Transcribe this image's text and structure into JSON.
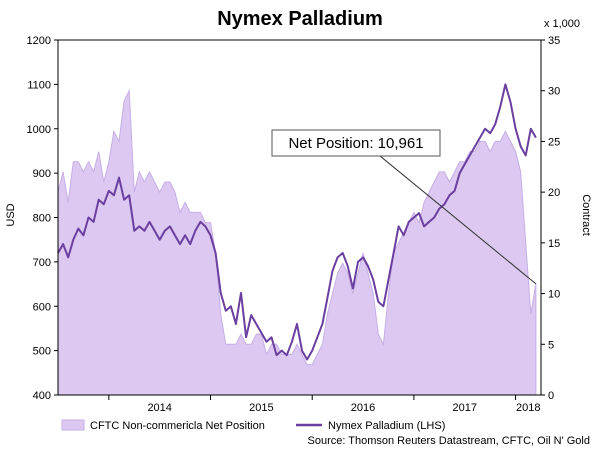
{
  "chart_data": {
    "type": "area+line",
    "title": "Nymex Palladium",
    "ylabel_left": "USD",
    "ylabel_right": "Contract",
    "right_multiplier": "x 1,000",
    "ylim_left": [
      400,
      1200
    ],
    "ylim_right": [
      0,
      35
    ],
    "left_ticks": [
      400,
      500,
      600,
      700,
      800,
      900,
      1000,
      1100,
      1200
    ],
    "right_ticks": [
      0,
      5,
      10,
      15,
      20,
      25,
      30,
      35
    ],
    "x_range": [
      2013.5,
      2018.25
    ],
    "year_ticks": [
      "2014",
      "2015",
      "2016",
      "2017",
      "2018"
    ],
    "grid": false,
    "legend_position": "bottom",
    "colors": {
      "area_fill": "#dcc8f0",
      "area_edge": "#c6aee6",
      "line": "#6a3fa0",
      "annotation": "#333333"
    },
    "series": [
      {
        "name": "CFTC Non-commericla Net Position",
        "type": "area",
        "axis": "right",
        "x": [
          2013.5,
          2013.55,
          2013.6,
          2013.65,
          2013.7,
          2013.75,
          2013.8,
          2013.85,
          2013.9,
          2013.95,
          2014.0,
          2014.05,
          2014.1,
          2014.15,
          2014.2,
          2014.25,
          2014.3,
          2014.35,
          2014.4,
          2014.45,
          2014.5,
          2014.55,
          2014.6,
          2014.65,
          2014.7,
          2014.75,
          2014.8,
          2014.85,
          2014.9,
          2014.95,
          2015.0,
          2015.05,
          2015.1,
          2015.15,
          2015.2,
          2015.25,
          2015.3,
          2015.35,
          2015.4,
          2015.45,
          2015.5,
          2015.55,
          2015.6,
          2015.65,
          2015.7,
          2015.75,
          2015.8,
          2015.85,
          2015.9,
          2015.95,
          2016.0,
          2016.05,
          2016.1,
          2016.15,
          2016.2,
          2016.25,
          2016.3,
          2016.35,
          2016.4,
          2016.45,
          2016.5,
          2016.55,
          2016.6,
          2016.65,
          2016.7,
          2016.75,
          2016.8,
          2016.85,
          2016.9,
          2016.95,
          2017.0,
          2017.05,
          2017.1,
          2017.15,
          2017.2,
          2017.25,
          2017.3,
          2017.35,
          2017.4,
          2017.45,
          2017.5,
          2017.55,
          2017.6,
          2017.65,
          2017.7,
          2017.75,
          2017.8,
          2017.85,
          2017.9,
          2017.95,
          2018.0,
          2018.05,
          2018.1,
          2018.15,
          2018.2
        ],
        "values": [
          20,
          22,
          19,
          23,
          23,
          22,
          23,
          22,
          24,
          21,
          23,
          26,
          25,
          29,
          30,
          20,
          22,
          21,
          22,
          21,
          20,
          21,
          21,
          20,
          18,
          19,
          18,
          18,
          18,
          17,
          17,
          14,
          8,
          5,
          5,
          5,
          6,
          5,
          5,
          6,
          6,
          4,
          5,
          5,
          4,
          4,
          4,
          5,
          4,
          3,
          3,
          4,
          5,
          8,
          10,
          12,
          13,
          12,
          10,
          12,
          14,
          12,
          10,
          6,
          5,
          10,
          14,
          15,
          16,
          17,
          18,
          17,
          19,
          20,
          21,
          22,
          22,
          21,
          22,
          23,
          23,
          24,
          24,
          25,
          25,
          24,
          25,
          25,
          26,
          25,
          24,
          22,
          15,
          8,
          11
        ]
      },
      {
        "name": "Nymex Palladium (LHS)",
        "type": "line",
        "axis": "left",
        "x": [
          2013.5,
          2013.55,
          2013.6,
          2013.65,
          2013.7,
          2013.75,
          2013.8,
          2013.85,
          2013.9,
          2013.95,
          2014.0,
          2014.05,
          2014.1,
          2014.15,
          2014.2,
          2014.25,
          2014.3,
          2014.35,
          2014.4,
          2014.45,
          2014.5,
          2014.55,
          2014.6,
          2014.65,
          2014.7,
          2014.75,
          2014.8,
          2014.85,
          2014.9,
          2014.95,
          2015.0,
          2015.05,
          2015.1,
          2015.15,
          2015.2,
          2015.25,
          2015.3,
          2015.35,
          2015.4,
          2015.45,
          2015.5,
          2015.55,
          2015.6,
          2015.65,
          2015.7,
          2015.75,
          2015.8,
          2015.85,
          2015.9,
          2015.95,
          2016.0,
          2016.05,
          2016.1,
          2016.15,
          2016.2,
          2016.25,
          2016.3,
          2016.35,
          2016.4,
          2016.45,
          2016.5,
          2016.55,
          2016.6,
          2016.65,
          2016.7,
          2016.75,
          2016.8,
          2016.85,
          2016.9,
          2016.95,
          2017.0,
          2017.05,
          2017.1,
          2017.15,
          2017.2,
          2017.25,
          2017.3,
          2017.35,
          2017.4,
          2017.45,
          2017.5,
          2017.55,
          2017.6,
          2017.65,
          2017.7,
          2017.75,
          2017.8,
          2017.85,
          2017.9,
          2017.95,
          2018.0,
          2018.05,
          2018.1,
          2018.15,
          2018.2
        ],
        "values": [
          720,
          740,
          710,
          750,
          775,
          760,
          800,
          790,
          840,
          830,
          860,
          850,
          890,
          840,
          850,
          770,
          780,
          770,
          790,
          770,
          750,
          770,
          780,
          760,
          740,
          760,
          740,
          770,
          790,
          780,
          760,
          720,
          630,
          590,
          600,
          560,
          630,
          530,
          580,
          560,
          540,
          520,
          530,
          490,
          500,
          490,
          520,
          560,
          500,
          480,
          500,
          530,
          560,
          620,
          680,
          710,
          720,
          690,
          640,
          700,
          710,
          690,
          660,
          610,
          600,
          660,
          720,
          780,
          760,
          790,
          800,
          810,
          780,
          790,
          800,
          820,
          830,
          850,
          860,
          900,
          920,
          940,
          960,
          980,
          1000,
          990,
          1010,
          1050,
          1100,
          1060,
          1000,
          960,
          940,
          1000,
          980
        ]
      }
    ],
    "annotations": [
      {
        "text": "Net Position: 10,961",
        "x": 2018.2,
        "y_right": 10.961
      }
    ]
  },
  "source_text": "Source: Thomson Reuters Datastream, CFTC, Oil N' Gold"
}
